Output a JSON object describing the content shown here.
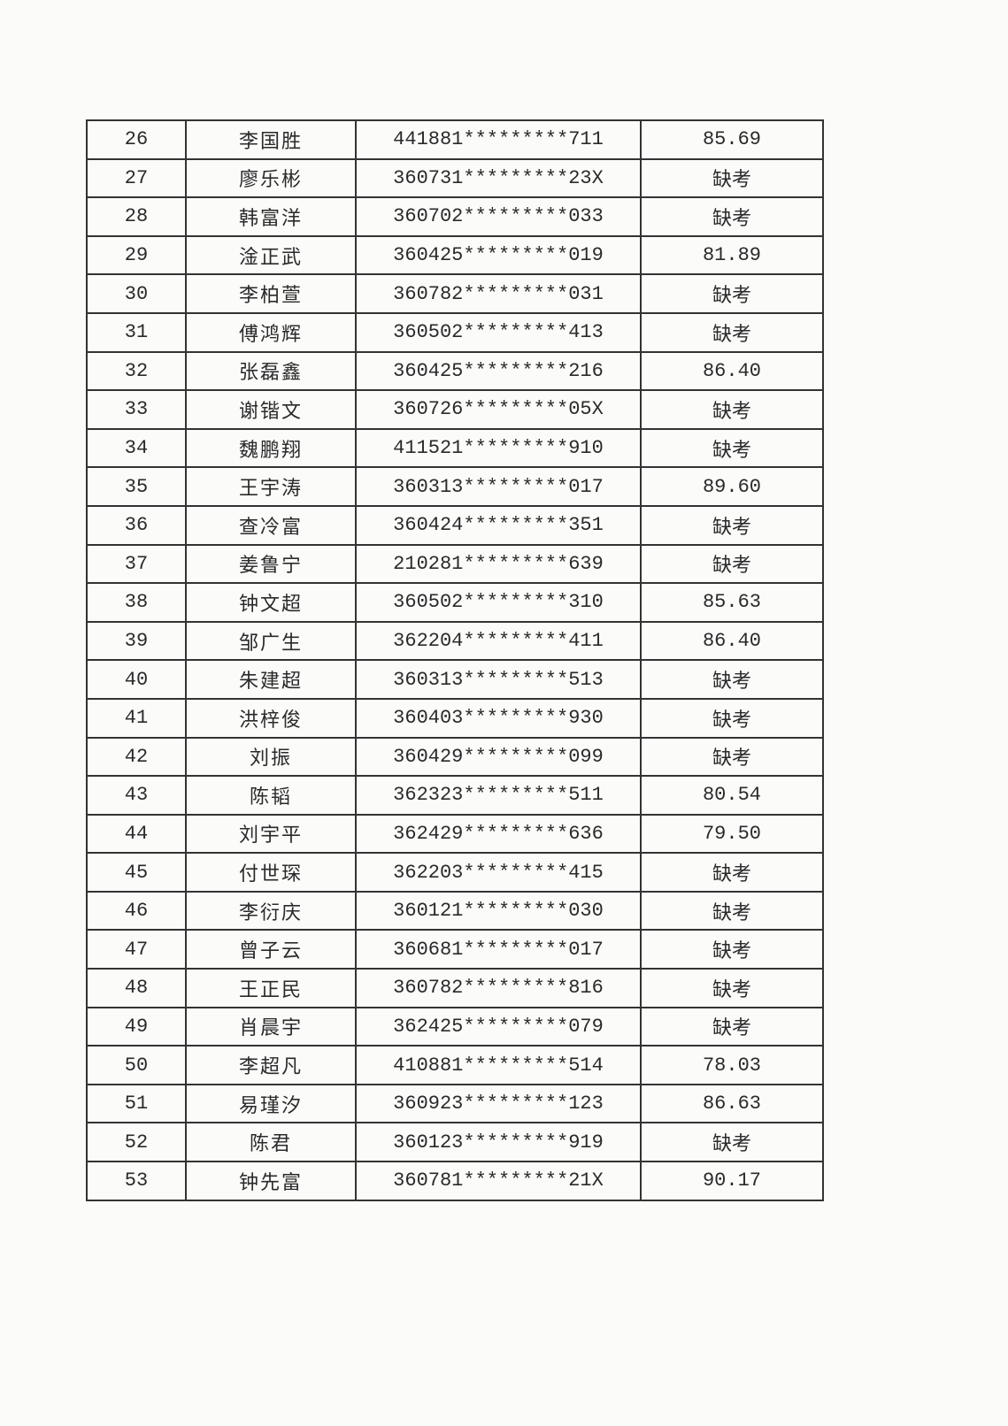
{
  "table": {
    "rows": [
      {
        "no": "26",
        "name": "李国胜",
        "id": "441881*********711",
        "score": "85.69"
      },
      {
        "no": "27",
        "name": "廖乐彬",
        "id": "360731*********23X",
        "score": "缺考"
      },
      {
        "no": "28",
        "name": "韩富洋",
        "id": "360702*********033",
        "score": "缺考"
      },
      {
        "no": "29",
        "name": "淦正武",
        "id": "360425*********019",
        "score": "81.89"
      },
      {
        "no": "30",
        "name": "李柏萱",
        "id": "360782*********031",
        "score": "缺考"
      },
      {
        "no": "31",
        "name": "傅鸿辉",
        "id": "360502*********413",
        "score": "缺考"
      },
      {
        "no": "32",
        "name": "张磊鑫",
        "id": "360425*********216",
        "score": "86.40"
      },
      {
        "no": "33",
        "name": "谢锴文",
        "id": "360726*********05X",
        "score": "缺考"
      },
      {
        "no": "34",
        "name": "魏鹏翔",
        "id": "411521*********910",
        "score": "缺考"
      },
      {
        "no": "35",
        "name": "王宇涛",
        "id": "360313*********017",
        "score": "89.60"
      },
      {
        "no": "36",
        "name": "查冷富",
        "id": "360424*********351",
        "score": "缺考"
      },
      {
        "no": "37",
        "name": "姜鲁宁",
        "id": "210281*********639",
        "score": "缺考"
      },
      {
        "no": "38",
        "name": "钟文超",
        "id": "360502*********310",
        "score": "85.63"
      },
      {
        "no": "39",
        "name": "邹广生",
        "id": "362204*********411",
        "score": "86.40"
      },
      {
        "no": "40",
        "name": "朱建超",
        "id": "360313*********513",
        "score": "缺考"
      },
      {
        "no": "41",
        "name": "洪梓俊",
        "id": "360403*********930",
        "score": "缺考"
      },
      {
        "no": "42",
        "name": "刘振",
        "id": "360429*********099",
        "score": "缺考"
      },
      {
        "no": "43",
        "name": "陈韬",
        "id": "362323*********511",
        "score": "80.54"
      },
      {
        "no": "44",
        "name": "刘宇平",
        "id": "362429*********636",
        "score": "79.50"
      },
      {
        "no": "45",
        "name": "付世琛",
        "id": "362203*********415",
        "score": "缺考"
      },
      {
        "no": "46",
        "name": "李衍庆",
        "id": "360121*********030",
        "score": "缺考"
      },
      {
        "no": "47",
        "name": "曾子云",
        "id": "360681*********017",
        "score": "缺考"
      },
      {
        "no": "48",
        "name": "王正民",
        "id": "360782*********816",
        "score": "缺考"
      },
      {
        "no": "49",
        "name": "肖晨宇",
        "id": "362425*********079",
        "score": "缺考"
      },
      {
        "no": "50",
        "name": "李超凡",
        "id": "410881*********514",
        "score": "78.03"
      },
      {
        "no": "51",
        "name": "易瑾汐",
        "id": "360923*********123",
        "score": "86.63"
      },
      {
        "no": "52",
        "name": "陈君",
        "id": "360123*********919",
        "score": "缺考"
      },
      {
        "no": "53",
        "name": "钟先富",
        "id": "360781*********21X",
        "score": "90.17"
      }
    ]
  }
}
